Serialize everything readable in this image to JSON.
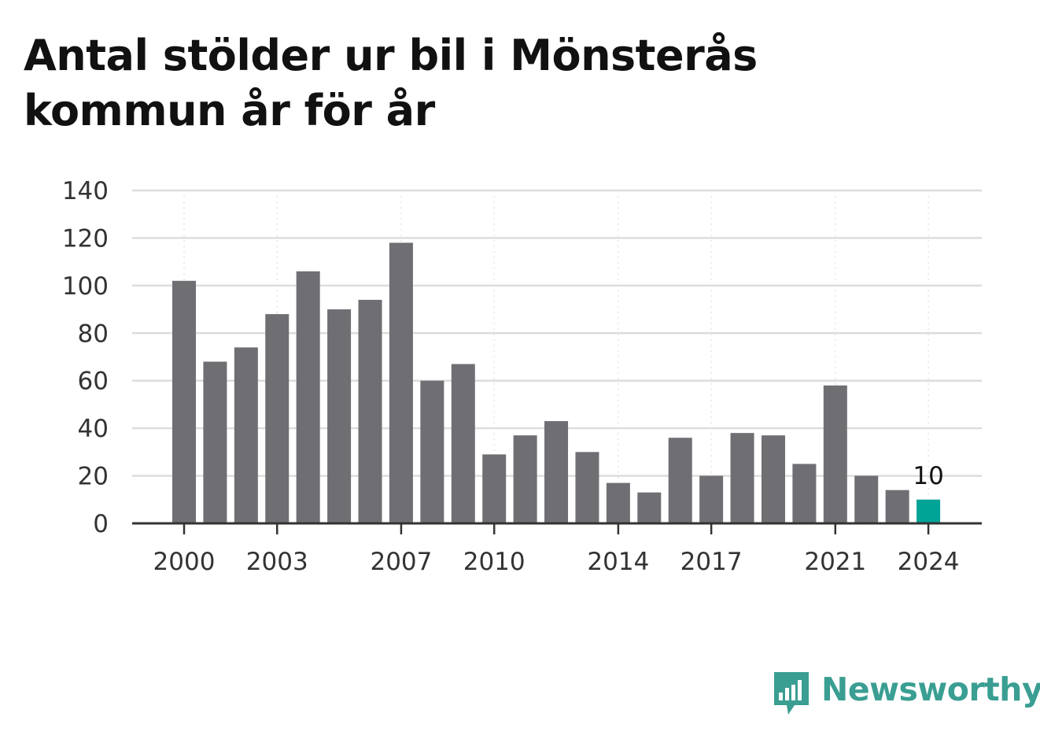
{
  "title": "Antal stölder ur bil i Mönsterås kommun år för år",
  "colors": {
    "bar": "#6f6e73",
    "highlight": "#00a497",
    "grid": "#dddddd",
    "axis": "#333333",
    "brand": "#3a9e92"
  },
  "brand": {
    "name": "Newsworthy",
    "icon": "bar-chart-speech-bubble-icon"
  },
  "chart_data": {
    "type": "bar",
    "title": "Antal stölder ur bil i Mönsterås kommun år för år",
    "xlabel": "",
    "ylabel": "",
    "categories": [
      2000,
      2001,
      2002,
      2003,
      2004,
      2005,
      2006,
      2007,
      2008,
      2009,
      2010,
      2011,
      2012,
      2013,
      2014,
      2015,
      2016,
      2017,
      2018,
      2019,
      2020,
      2021,
      2022,
      2023,
      2024
    ],
    "values": [
      102,
      68,
      74,
      88,
      106,
      90,
      94,
      118,
      60,
      67,
      29,
      37,
      43,
      30,
      17,
      13,
      36,
      20,
      38,
      37,
      25,
      58,
      20,
      14,
      10
    ],
    "x_tick_labels": [
      "2000",
      "2003",
      "2007",
      "2010",
      "2014",
      "2017",
      "2021",
      "2024"
    ],
    "y_ticks": [
      0,
      20,
      40,
      60,
      80,
      100,
      120,
      140
    ],
    "ylim": [
      0,
      140
    ],
    "grid": true,
    "highlight": {
      "category": 2024,
      "label": "10"
    }
  }
}
